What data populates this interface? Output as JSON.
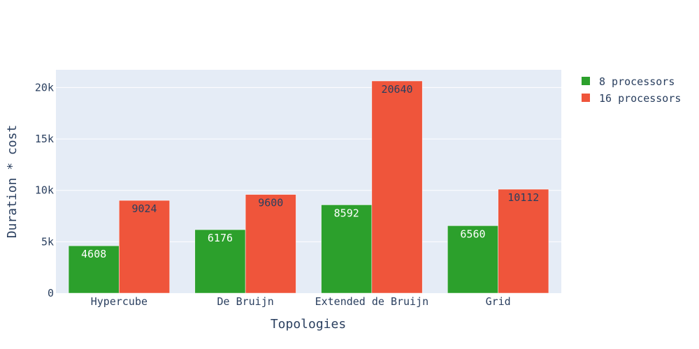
{
  "chart_data": {
    "type": "bar",
    "categories": [
      "Hypercube",
      "De Bruijn",
      "Extended de Bruijn",
      "Grid"
    ],
    "series": [
      {
        "name": "8 processors",
        "values": [
          4608,
          6176,
          8592,
          6560
        ],
        "color": "#2ca02c",
        "label_color": "#ffffff"
      },
      {
        "name": "16 processors",
        "values": [
          9024,
          9600,
          20640,
          10112
        ],
        "color": "#ef553b",
        "label_color": "#2a3f5f"
      }
    ],
    "xlabel": "Topologies",
    "ylabel": "Duration * cost",
    "ylim": [
      0,
      21726
    ],
    "yticks": [
      {
        "value": 0,
        "label": "0"
      },
      {
        "value": 5000,
        "label": "5k"
      },
      {
        "value": 10000,
        "label": "10k"
      },
      {
        "value": 15000,
        "label": "15k"
      },
      {
        "value": 20000,
        "label": "20k"
      }
    ],
    "grid": true,
    "legend_position": "top-right",
    "plot_background": "#e5ecf6",
    "grid_color": "#ffffff"
  }
}
